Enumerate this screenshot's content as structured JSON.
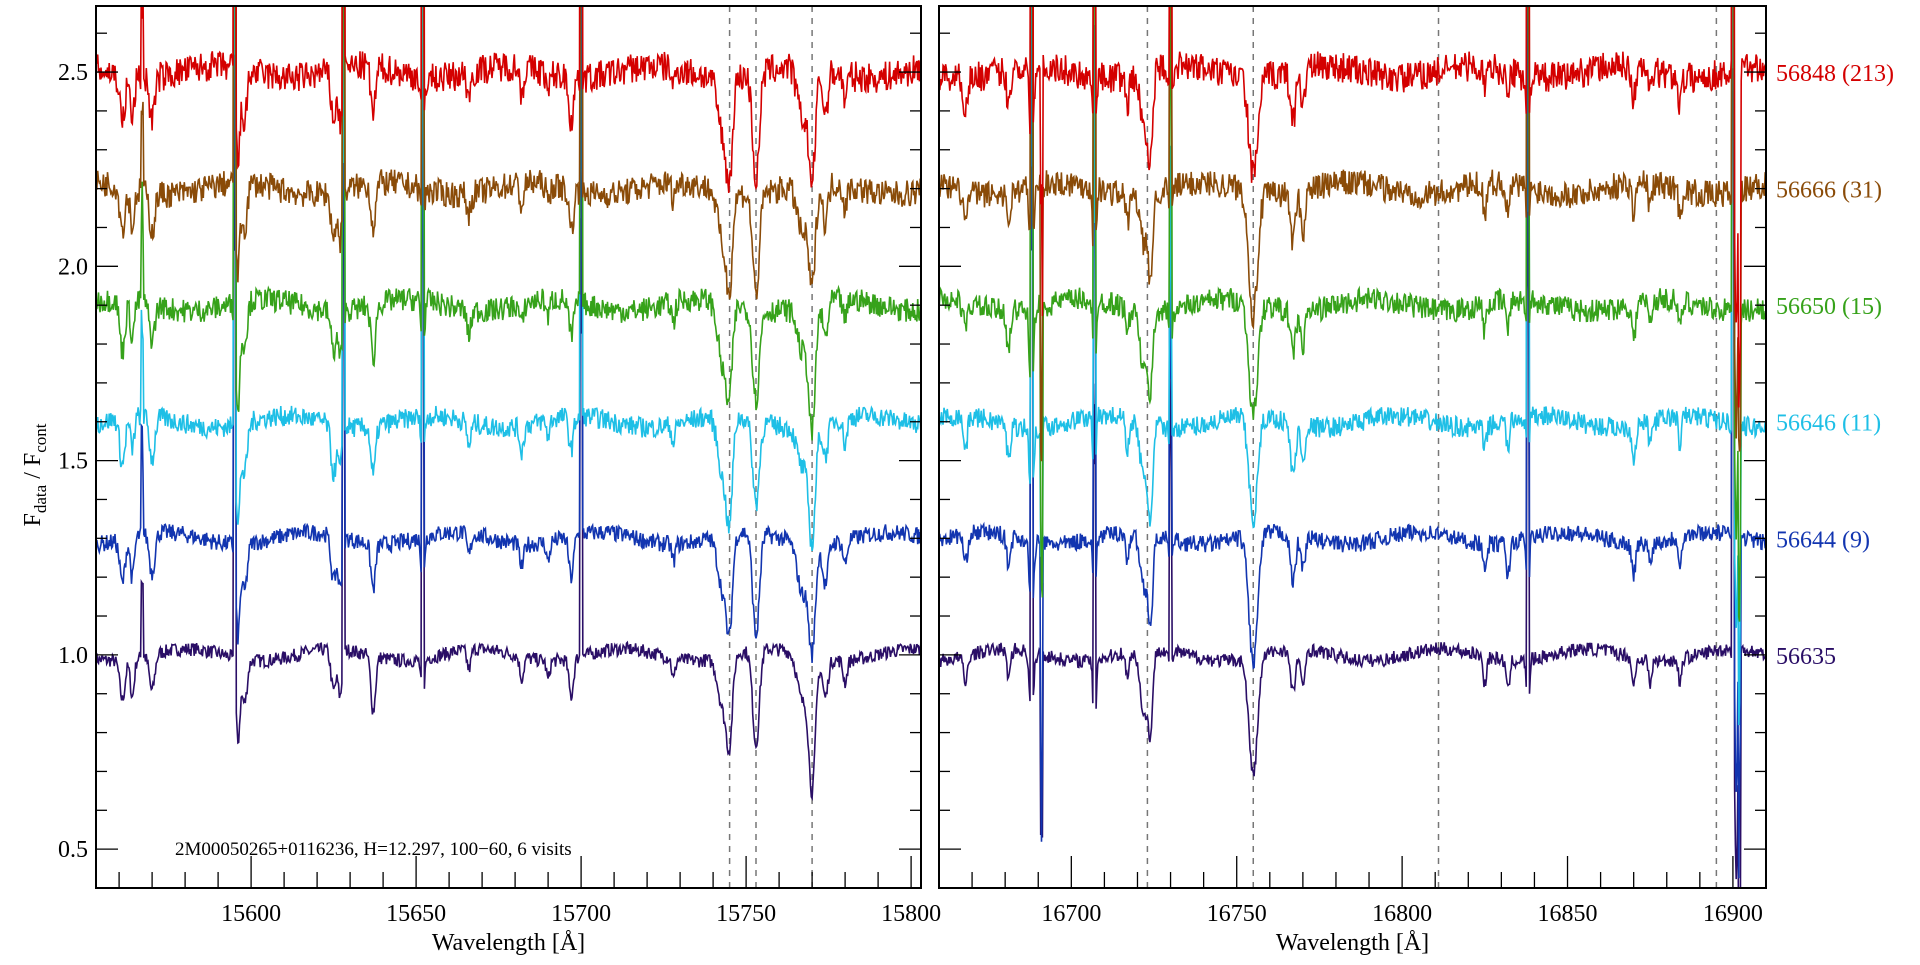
{
  "chart_data": {
    "type": "line",
    "ylabel_main": "F",
    "ylabel_sub1": "data",
    "ylabel_sep": " / F",
    "ylabel_sub2": "cont",
    "ylim": [
      0.4,
      2.67
    ],
    "yticks": [
      "0.5",
      "1.0",
      "1.5",
      "2.0",
      "2.5"
    ],
    "annotation": "2M00050265+0116236,    H=12.297,    100−60,    6 visits",
    "panels": [
      {
        "xlabel": "Wavelength [Å]",
        "xlim": [
          15553,
          15803
        ],
        "xticks": [
          "15600",
          "15650",
          "15700",
          "15750",
          "15800"
        ],
        "dashed_lines": [
          15745,
          15753,
          15770
        ],
        "absorption": [
          [
            15561,
            0.12,
            0.8
          ],
          [
            15564,
            0.1,
            0.6
          ],
          [
            15570,
            0.1,
            0.8
          ],
          [
            15596,
            0.25,
            0.6
          ],
          [
            15598,
            0.12,
            0.8
          ],
          [
            15625,
            0.12,
            0.8
          ],
          [
            15627,
            0.12,
            0.6
          ],
          [
            15637,
            0.13,
            0.7
          ],
          [
            15652,
            0.12,
            0.5
          ],
          [
            15666,
            0.06,
            0.6
          ],
          [
            15682,
            0.06,
            0.6
          ],
          [
            15690,
            0.05,
            0.5
          ],
          [
            15697,
            0.1,
            0.7
          ],
          [
            15728,
            0.05,
            0.5
          ],
          [
            15743,
            0.15,
            1.5
          ],
          [
            15745,
            0.2,
            0.9
          ],
          [
            15753,
            0.25,
            1.0
          ],
          [
            15767,
            0.12,
            1.5
          ],
          [
            15770,
            0.3,
            1.0
          ],
          [
            15774,
            0.1,
            0.8
          ],
          [
            15780,
            0.06,
            0.6
          ]
        ],
        "spikes": [
          [
            15567,
            0.25
          ],
          [
            15595,
            1.8
          ],
          [
            15628,
            1.3
          ],
          [
            15652,
            1.6
          ],
          [
            15700,
            1.5
          ]
        ]
      },
      {
        "xlabel": "Wavelength [Å]",
        "xlim": [
          16660,
          16910
        ],
        "xticks": [
          "16700",
          "16750",
          "16800",
          "16850",
          "16900"
        ],
        "dashed_lines": [
          16723,
          16755,
          16811,
          16895
        ],
        "absorption": [
          [
            16668,
            0.08,
            0.6
          ],
          [
            16681,
            0.08,
            0.6
          ],
          [
            16688,
            0.2,
            0.6
          ],
          [
            16707,
            0.25,
            0.4
          ],
          [
            16717,
            0.08,
            0.5
          ],
          [
            16722,
            0.15,
            1.2
          ],
          [
            16724,
            0.2,
            0.7
          ],
          [
            16730,
            0.07,
            0.5
          ],
          [
            16755,
            0.3,
            1.3
          ],
          [
            16767,
            0.12,
            0.8
          ],
          [
            16770,
            0.1,
            0.6
          ],
          [
            16825,
            0.07,
            0.5
          ],
          [
            16832,
            0.08,
            0.5
          ],
          [
            16838,
            0.18,
            0.4
          ],
          [
            16870,
            0.08,
            0.6
          ],
          [
            16875,
            0.06,
            0.5
          ],
          [
            16884,
            0.07,
            0.5
          ],
          [
            16901,
            0.6,
            0.5
          ]
        ],
        "spikes": [
          [
            16688,
            1.8
          ],
          [
            16691,
            -0.6
          ],
          [
            16707,
            1.2
          ],
          [
            16730,
            0.8
          ],
          [
            16838,
            1.6
          ],
          [
            16900,
            1.8
          ],
          [
            16902,
            -0.6
          ]
        ]
      }
    ],
    "series": [
      {
        "name": "56635",
        "label": "56635",
        "offset": 1.0,
        "color": "#2a0e66"
      },
      {
        "name": "56644",
        "label": "56644 (9)",
        "offset": 1.3,
        "color": "#1235b0"
      },
      {
        "name": "56646",
        "label": "56646 (11)",
        "offset": 1.6,
        "color": "#1ebfe6"
      },
      {
        "name": "56650",
        "label": "56650 (15)",
        "offset": 1.9,
        "color": "#36a21a"
      },
      {
        "name": "56666",
        "label": "56666 (31)",
        "offset": 2.2,
        "color": "#8a4b08"
      },
      {
        "name": "56848",
        "label": "56848 (213)",
        "offset": 2.5,
        "color": "#d40000"
      }
    ]
  }
}
